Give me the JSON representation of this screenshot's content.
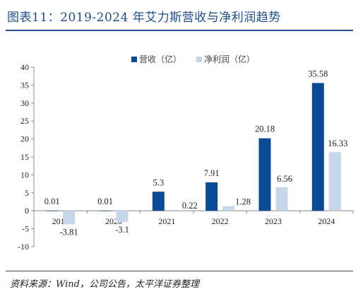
{
  "figure": {
    "title": "图表11：2019-2024 年艾力斯营收与净利润趋势",
    "source": "资料来源：Wind，公司公告，太平洋证券整理"
  },
  "chart_data": {
    "type": "bar",
    "categories": [
      "2019",
      "2020",
      "2021",
      "2022",
      "2023",
      "2024"
    ],
    "series": [
      {
        "name": "营收（亿）",
        "color": "#0b4a96",
        "values": [
          0.01,
          0.01,
          5.3,
          7.91,
          20.18,
          35.58
        ],
        "labels": [
          "0.01",
          "0.01",
          "5.3",
          "7.91",
          "20.18",
          "35.58"
        ]
      },
      {
        "name": "净利润（亿）",
        "color": "#c7d7ea",
        "values": [
          -3.81,
          -3.1,
          0.22,
          1.28,
          6.56,
          16.33
        ],
        "labels": [
          "-3.81",
          "-3.1",
          "0.22",
          "1.28",
          "6.56",
          "16.33"
        ]
      }
    ],
    "ylim": [
      -10,
      40
    ],
    "yticks": [
      -10,
      -5,
      0,
      5,
      10,
      15,
      20,
      25,
      30,
      35,
      40
    ],
    "xlabel": "",
    "ylabel": "",
    "legend_position": "top-center",
    "grid": false
  }
}
